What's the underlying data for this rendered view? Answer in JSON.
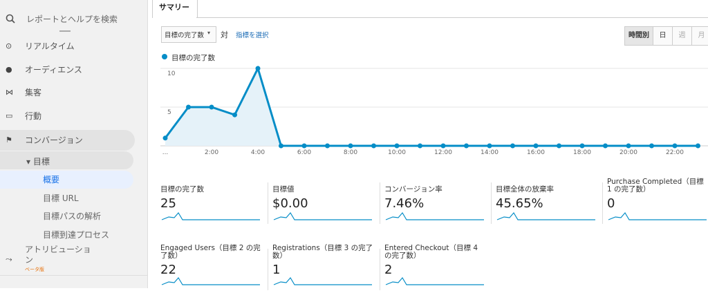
{
  "sidebar": {
    "search": "レポートとヘルプを検索",
    "items": [
      "リアルタイム",
      "オーディエンス",
      "集客",
      "行動",
      "コンバージョン"
    ],
    "sub_header": "▾ 目標",
    "sub_items": [
      "概要",
      "目標 URL",
      "目標パスの解析",
      "目標到達プロセス"
    ],
    "attribution": "アトリビューション",
    "beta": "ベータ版"
  },
  "tab": "サマリー",
  "toolbar": {
    "metric": "目標の完了数",
    "versus": "対",
    "select_metric": "指標を選択",
    "granularity": [
      "時間別",
      "日",
      "週",
      "月"
    ]
  },
  "chart": {
    "type": "line",
    "legend": "目標の完了数",
    "color": "#058dc7",
    "categories": [
      "...",
      null,
      "2:00",
      null,
      "4:00",
      null,
      "6:00",
      null,
      "8:00",
      null,
      "10:00",
      null,
      "12:00",
      null,
      "14:00",
      null,
      "16:00",
      null,
      "18:00",
      null,
      "20:00",
      null,
      "22:00",
      null
    ],
    "values": [
      1,
      5,
      5,
      4,
      10,
      0,
      0,
      0,
      0,
      0,
      0,
      0,
      0,
      0,
      0,
      0,
      0,
      0,
      0,
      0,
      0,
      0,
      0,
      0
    ],
    "ylim": [
      0,
      10
    ],
    "yticks": [
      5,
      10
    ],
    "grid": true
  },
  "metrics": [
    {
      "name": "目標の完了数",
      "value": "25"
    },
    {
      "name": "目標値",
      "value": "$0.00"
    },
    {
      "name": "コンバージョン率",
      "value": "7.46%"
    },
    {
      "name": "目標全体の放棄率",
      "value": "45.65%"
    },
    {
      "name": "Purchase Completed（目標 1 の完了数）",
      "value": "0"
    },
    {
      "name": "Engaged Users（目標 2 の完了数）",
      "value": "22"
    },
    {
      "name": "Registrations（目標 3 の完了数）",
      "value": "1"
    },
    {
      "name": "Entered Checkout（目標 4 の完了数）",
      "value": "2"
    }
  ]
}
